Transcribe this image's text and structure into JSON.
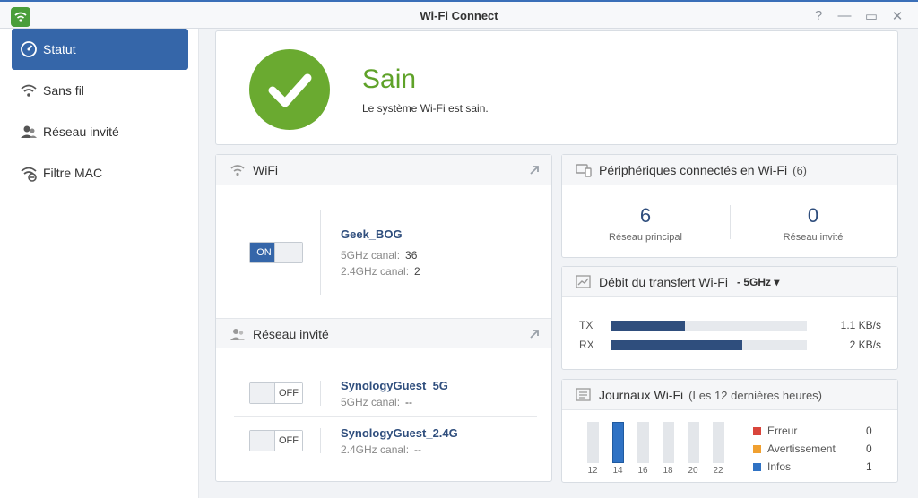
{
  "window": {
    "title": "Wi-Fi Connect",
    "help": "?",
    "minimize": "—",
    "maximize": "▭",
    "close": "✕"
  },
  "sidebar": {
    "items": [
      {
        "label": "Statut",
        "icon": "speedometer-icon",
        "active": true
      },
      {
        "label": "Sans fil",
        "icon": "wifi-icon",
        "active": false
      },
      {
        "label": "Réseau invité",
        "icon": "guest-users-icon",
        "active": false
      },
      {
        "label": "Filtre MAC",
        "icon": "wifi-filter-icon",
        "active": false
      }
    ]
  },
  "health": {
    "title": "Sain",
    "subtitle": "Le système Wi-Fi est sain."
  },
  "wifi": {
    "title": "WiFi",
    "toggle": "ON",
    "ssid": "Geek_BOG",
    "ch5_label": "5GHz canal:",
    "ch5_value": "36",
    "ch24_label": "2.4GHz canal:",
    "ch24_value": "2"
  },
  "guest": {
    "title": "Réseau invité",
    "networks": [
      {
        "toggle": "OFF",
        "ssid": "SynologyGuest_5G",
        "label": "5GHz canal:",
        "value": "--"
      },
      {
        "toggle": "OFF",
        "ssid": "SynologyGuest_2.4G",
        "label": "2.4GHz canal:",
        "value": "--"
      }
    ]
  },
  "devices": {
    "title": "Périphériques connectés en Wi-Fi",
    "count": "(6)",
    "main_value": "6",
    "main_label": "Réseau principal",
    "guest_value": "0",
    "guest_label": "Réseau invité"
  },
  "throughput": {
    "title": "Débit du transfert Wi-Fi",
    "band": "- 5GHz",
    "dropdown": "▾",
    "rows": [
      {
        "label": "TX",
        "fraction": 0.38,
        "value": "1.1 KB/s"
      },
      {
        "label": "RX",
        "fraction": 0.67,
        "value": "2 KB/s"
      }
    ]
  },
  "logs": {
    "title": "Journaux Wi-Fi",
    "subtitle": "(Les 12 dernières heures)",
    "ticks": [
      "12",
      "14",
      "16",
      "18",
      "20",
      "22"
    ],
    "highlight_index": 1,
    "legend": [
      {
        "name": "Erreur",
        "count": "0",
        "color": "#d9453b"
      },
      {
        "name": "Avertissement",
        "count": "0",
        "color": "#f0a030"
      },
      {
        "name": "Infos",
        "count": "1",
        "color": "#2f72c4"
      }
    ]
  }
}
